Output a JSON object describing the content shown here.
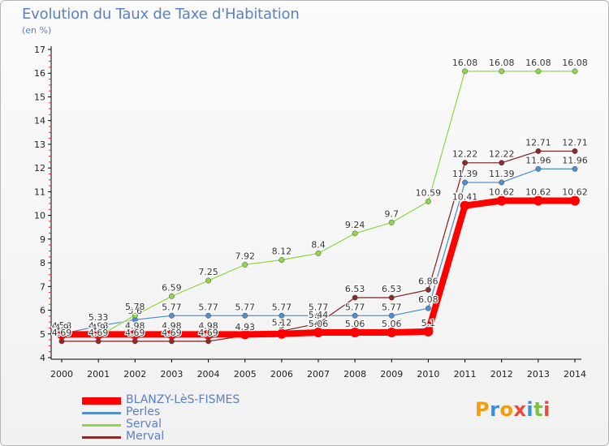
{
  "title": "Evolution du Taux de Taxe d'Habitation",
  "units": "(en %)",
  "logo": {
    "text": "Proxiti",
    "colors": [
      "#f39c12",
      "#3b8fd6",
      "#f39c12",
      "#e74c3c",
      "#3b8fd6",
      "#7ac143",
      "#e74c3c"
    ]
  },
  "chart_data": {
    "type": "line",
    "x": [
      "2000",
      "2001",
      "2002",
      "2003",
      "2004",
      "2005",
      "2006",
      "2007",
      "2008",
      "2009",
      "2010",
      "2011",
      "2012",
      "2013",
      "2014"
    ],
    "ylim": [
      4,
      17
    ],
    "yticks": [
      "4",
      "5",
      "6",
      "7",
      "8",
      "9",
      "10",
      "11",
      "12",
      "13",
      "14",
      "15",
      "16",
      "17"
    ],
    "grid": false,
    "legend_position": "bottom-left",
    "series": [
      {
        "name": "BLANZY-LèS-FISMES",
        "color": "#ff0000",
        "bold": true,
        "values": [
          4.98,
          4.98,
          4.98,
          4.98,
          4.98,
          4.98,
          5.0,
          5.06,
          5.06,
          5.06,
          5.1,
          10.41,
          10.62,
          10.62,
          10.62
        ],
        "labels": [
          "4.98",
          "4.98",
          "4.98",
          "4.98",
          "4.98",
          "4.98",
          "5",
          "5.06",
          "5.06",
          "5.06",
          "5.1",
          "10.41",
          "10.62",
          "10.62",
          "10.62"
        ]
      },
      {
        "name": "Perles",
        "color": "#4f8fd0",
        "bold": false,
        "values": [
          5.0,
          5.33,
          5.6,
          5.77,
          5.77,
          5.77,
          5.77,
          5.77,
          5.77,
          5.77,
          6.08,
          11.39,
          11.39,
          11.96,
          11.96
        ],
        "labels": [
          "5",
          "5.33",
          "5.6",
          "5.77",
          "5.77",
          "5.77",
          "5.77",
          "5.77",
          "5.77",
          "5.77",
          "6.08",
          "11.39",
          "11.39",
          "11.96",
          "11.96"
        ]
      },
      {
        "name": "Serval",
        "color": "#8fd64a",
        "bold": false,
        "values": [
          4.9,
          4.9,
          5.78,
          6.59,
          7.25,
          7.92,
          8.12,
          8.4,
          9.24,
          9.7,
          10.59,
          16.08,
          16.08,
          16.08,
          16.08
        ],
        "labels": [
          "4.9",
          "4.9",
          "5.78",
          "6.59",
          "7.25",
          "7.92",
          "8.12",
          "8.4",
          "9.24",
          "9.7",
          "10.59",
          "16.08",
          "16.08",
          "16.08",
          "16.08"
        ]
      },
      {
        "name": "Merval",
        "color": "#8b2a2a",
        "bold": false,
        "values": [
          4.69,
          4.69,
          4.69,
          4.69,
          4.69,
          4.93,
          5.12,
          5.44,
          6.53,
          6.53,
          6.86,
          12.22,
          12.22,
          12.71,
          12.71
        ],
        "labels": [
          "4.69",
          "4.69",
          "4.69",
          "4.69",
          "4.69",
          "4.93",
          "5.12",
          "5.44",
          "6.53",
          "6.53",
          "6.86",
          "12.22",
          "12.22",
          "12.71",
          "12.71"
        ]
      }
    ]
  }
}
